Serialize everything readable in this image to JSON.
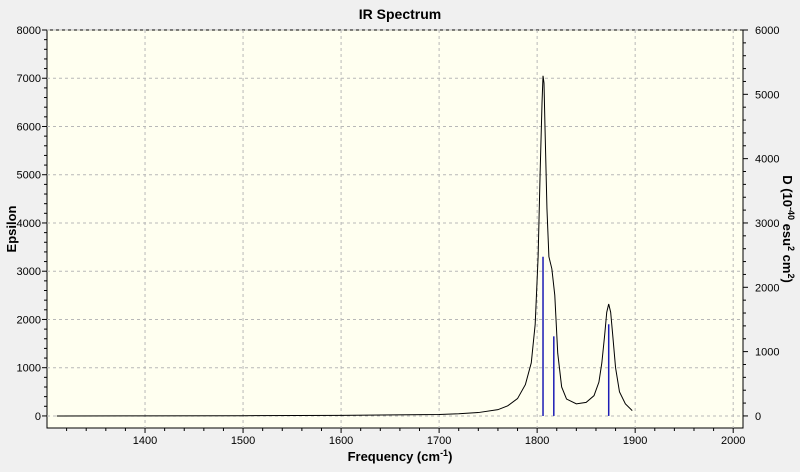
{
  "chart_data": {
    "type": "line",
    "title": "IR Spectrum",
    "xlabel": "Frequency (cm",
    "xlabel_sup": "-1",
    "xlabel_end": ")",
    "ylabel": "Epsilon",
    "y2label_prefix": "D (10",
    "y2label_exp1": "-40",
    "y2label_mid": " esu",
    "y2label_exp2": "2",
    "y2label_mid2": " cm",
    "y2label_exp3": "2",
    "y2label_end": ")",
    "xlim": [
      1300,
      2010
    ],
    "ylim": [
      -250,
      8000
    ],
    "y2lim": [
      -187.5,
      6000
    ],
    "x_ticks": [
      1400,
      1500,
      1600,
      1700,
      1800,
      1900,
      2000
    ],
    "y_ticks": [
      0,
      1000,
      2000,
      3000,
      4000,
      5000,
      6000,
      7000,
      8000
    ],
    "y2_ticks": [
      0,
      1000,
      2000,
      3000,
      4000,
      5000,
      6000
    ],
    "grid": true,
    "colors": {
      "spectrum": "#000000",
      "sticks": "#1c1cb4",
      "plot_bg": "#fffff0",
      "grid": "#b8b8b8"
    },
    "series": [
      {
        "x": [
          1310,
          1400,
          1500,
          1600,
          1700,
          1720,
          1740,
          1760,
          1770,
          1780,
          1788,
          1794,
          1798,
          1801,
          1803,
          1805,
          1806,
          1807,
          1808,
          1810,
          1812,
          1815,
          1818,
          1821,
          1825,
          1830,
          1840,
          1850,
          1858,
          1863,
          1866,
          1869,
          1871,
          1873,
          1875,
          1877,
          1880,
          1884,
          1890,
          1897
        ],
        "y": [
          0,
          2,
          5,
          12,
          30,
          45,
          70,
          130,
          210,
          360,
          650,
          1100,
          1900,
          3300,
          5000,
          6500,
          7050,
          6900,
          6000,
          4300,
          3300,
          3050,
          2500,
          1300,
          600,
          350,
          250,
          280,
          420,
          700,
          1100,
          1700,
          2150,
          2320,
          2150,
          1700,
          1000,
          500,
          250,
          110
        ]
      }
    ],
    "sticks": [
      {
        "x": 1806,
        "epsilon": 3300
      },
      {
        "x": 1817,
        "epsilon": 1650
      },
      {
        "x": 1873,
        "epsilon": 1900
      }
    ]
  }
}
